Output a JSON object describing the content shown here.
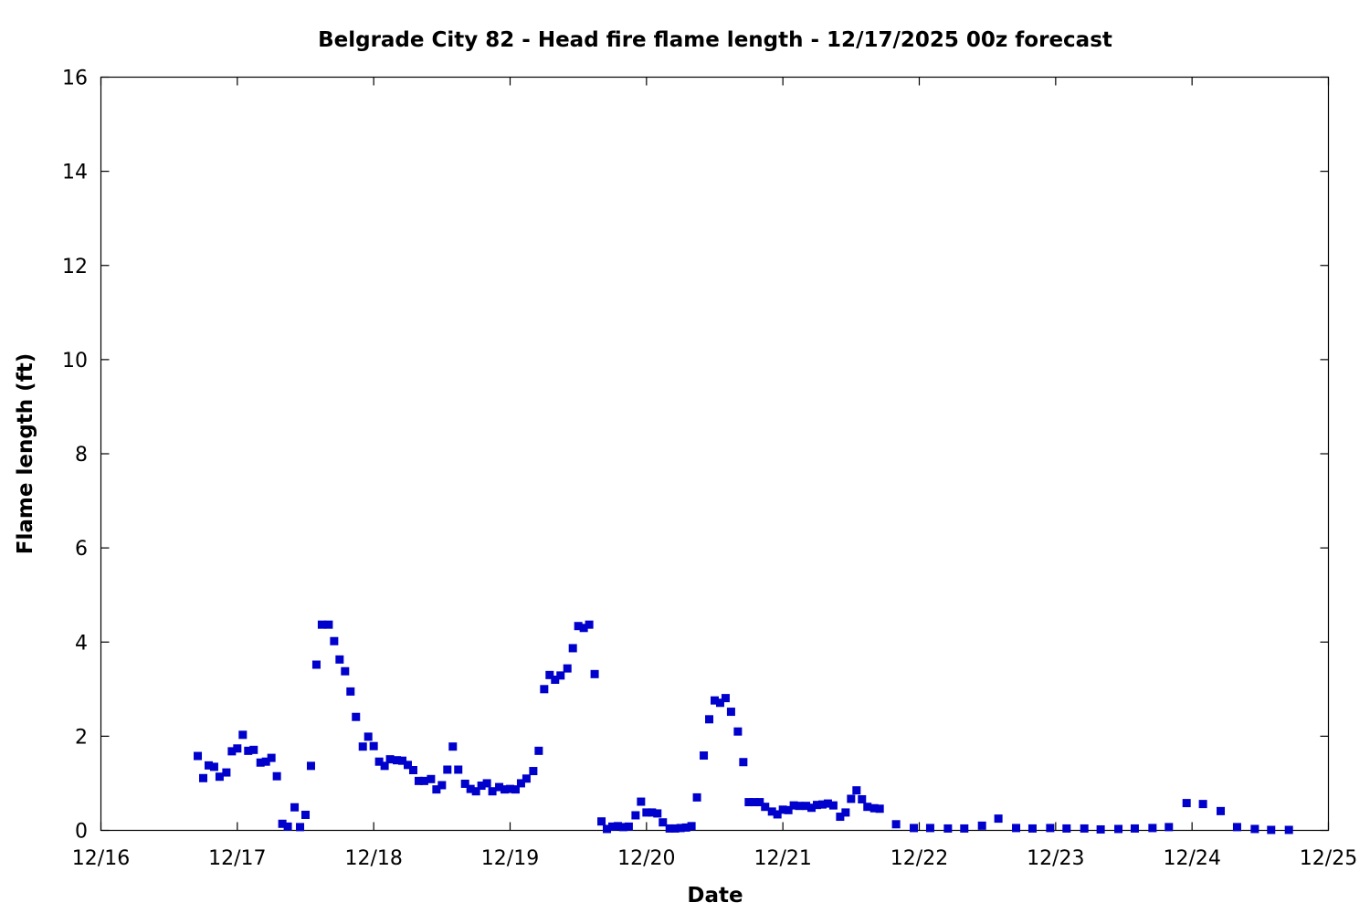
{
  "chart_data": {
    "type": "scatter",
    "title": "Belgrade City 82 - Head fire flame length - 12/17/2025 00z forecast",
    "xlabel": "Date",
    "ylabel": "Flame length (ft)",
    "x_unit": "day of December 2025",
    "xlim": [
      16,
      25
    ],
    "ylim": [
      0,
      16
    ],
    "xticks": [
      {
        "value": 16,
        "label": "12/16"
      },
      {
        "value": 17,
        "label": "12/17"
      },
      {
        "value": 18,
        "label": "12/18"
      },
      {
        "value": 19,
        "label": "12/19"
      },
      {
        "value": 20,
        "label": "12/20"
      },
      {
        "value": 21,
        "label": "12/21"
      },
      {
        "value": 22,
        "label": "12/22"
      },
      {
        "value": 23,
        "label": "12/23"
      },
      {
        "value": 24,
        "label": "12/24"
      },
      {
        "value": 25,
        "label": "12/25"
      }
    ],
    "yticks": [
      0,
      2,
      4,
      6,
      8,
      10,
      12,
      14,
      16
    ],
    "grid": false,
    "legend": "none",
    "marker_color": "#0000cc",
    "points": [
      [
        16.71,
        1.58
      ],
      [
        16.75,
        1.11
      ],
      [
        16.79,
        1.38
      ],
      [
        16.83,
        1.35
      ],
      [
        16.87,
        1.14
      ],
      [
        16.92,
        1.23
      ],
      [
        16.96,
        1.68
      ],
      [
        17.0,
        1.74
      ],
      [
        17.04,
        2.03
      ],
      [
        17.08,
        1.69
      ],
      [
        17.12,
        1.71
      ],
      [
        17.17,
        1.44
      ],
      [
        17.21,
        1.46
      ],
      [
        17.25,
        1.54
      ],
      [
        17.29,
        1.15
      ],
      [
        17.33,
        0.14
      ],
      [
        17.37,
        0.08
      ],
      [
        17.42,
        0.49
      ],
      [
        17.46,
        0.07
      ],
      [
        17.5,
        0.33
      ],
      [
        17.54,
        1.37
      ],
      [
        17.58,
        3.52
      ],
      [
        17.62,
        4.37
      ],
      [
        17.67,
        4.37
      ],
      [
        17.71,
        4.02
      ],
      [
        17.75,
        3.63
      ],
      [
        17.79,
        3.38
      ],
      [
        17.83,
        2.95
      ],
      [
        17.87,
        2.41
      ],
      [
        17.92,
        1.78
      ],
      [
        17.96,
        1.99
      ],
      [
        18.0,
        1.79
      ],
      [
        18.04,
        1.46
      ],
      [
        18.08,
        1.37
      ],
      [
        18.12,
        1.51
      ],
      [
        18.17,
        1.49
      ],
      [
        18.21,
        1.48
      ],
      [
        18.25,
        1.39
      ],
      [
        18.29,
        1.28
      ],
      [
        18.33,
        1.05
      ],
      [
        18.37,
        1.05
      ],
      [
        18.42,
        1.09
      ],
      [
        18.46,
        0.87
      ],
      [
        18.5,
        0.96
      ],
      [
        18.54,
        1.29
      ],
      [
        18.58,
        1.78
      ],
      [
        18.62,
        1.29
      ],
      [
        18.67,
        0.99
      ],
      [
        18.71,
        0.88
      ],
      [
        18.75,
        0.83
      ],
      [
        18.79,
        0.95
      ],
      [
        18.83,
        1.0
      ],
      [
        18.87,
        0.83
      ],
      [
        18.92,
        0.92
      ],
      [
        18.96,
        0.87
      ],
      [
        19.0,
        0.88
      ],
      [
        19.04,
        0.87
      ],
      [
        19.08,
        1.0
      ],
      [
        19.12,
        1.1
      ],
      [
        19.17,
        1.26
      ],
      [
        19.21,
        1.69
      ],
      [
        19.25,
        3.0
      ],
      [
        19.29,
        3.3
      ],
      [
        19.33,
        3.2
      ],
      [
        19.37,
        3.29
      ],
      [
        19.42,
        3.44
      ],
      [
        19.46,
        3.87
      ],
      [
        19.5,
        4.34
      ],
      [
        19.54,
        4.3
      ],
      [
        19.58,
        4.37
      ],
      [
        19.62,
        3.32
      ],
      [
        19.67,
        0.19
      ],
      [
        19.71,
        0.03
      ],
      [
        19.75,
        0.08
      ],
      [
        19.79,
        0.09
      ],
      [
        19.83,
        0.07
      ],
      [
        19.87,
        0.08
      ],
      [
        19.92,
        0.32
      ],
      [
        19.96,
        0.61
      ],
      [
        20.0,
        0.38
      ],
      [
        20.04,
        0.38
      ],
      [
        20.08,
        0.36
      ],
      [
        20.12,
        0.17
      ],
      [
        20.17,
        0.04
      ],
      [
        20.21,
        0.04
      ],
      [
        20.25,
        0.05
      ],
      [
        20.29,
        0.06
      ],
      [
        20.33,
        0.09
      ],
      [
        20.37,
        0.7
      ],
      [
        20.42,
        1.59
      ],
      [
        20.46,
        2.36
      ],
      [
        20.5,
        2.76
      ],
      [
        20.54,
        2.71
      ],
      [
        20.58,
        2.81
      ],
      [
        20.62,
        2.52
      ],
      [
        20.67,
        2.1
      ],
      [
        20.71,
        1.45
      ],
      [
        20.75,
        0.6
      ],
      [
        20.79,
        0.6
      ],
      [
        20.83,
        0.6
      ],
      [
        20.87,
        0.5
      ],
      [
        20.92,
        0.4
      ],
      [
        20.96,
        0.34
      ],
      [
        21.0,
        0.44
      ],
      [
        21.04,
        0.43
      ],
      [
        21.08,
        0.53
      ],
      [
        21.12,
        0.52
      ],
      [
        21.17,
        0.52
      ],
      [
        21.21,
        0.48
      ],
      [
        21.25,
        0.54
      ],
      [
        21.29,
        0.55
      ],
      [
        21.33,
        0.57
      ],
      [
        21.37,
        0.53
      ],
      [
        21.42,
        0.29
      ],
      [
        21.46,
        0.38
      ],
      [
        21.5,
        0.67
      ],
      [
        21.54,
        0.85
      ],
      [
        21.58,
        0.66
      ],
      [
        21.62,
        0.5
      ],
      [
        21.67,
        0.47
      ],
      [
        21.71,
        0.46
      ],
      [
        21.83,
        0.13
      ],
      [
        21.96,
        0.05
      ],
      [
        22.08,
        0.05
      ],
      [
        22.21,
        0.04
      ],
      [
        22.33,
        0.04
      ],
      [
        22.46,
        0.1
      ],
      [
        22.58,
        0.25
      ],
      [
        22.71,
        0.05
      ],
      [
        22.83,
        0.04
      ],
      [
        22.96,
        0.05
      ],
      [
        23.08,
        0.04
      ],
      [
        23.21,
        0.04
      ],
      [
        23.33,
        0.02
      ],
      [
        23.46,
        0.03
      ],
      [
        23.58,
        0.04
      ],
      [
        23.71,
        0.05
      ],
      [
        23.83,
        0.07
      ],
      [
        23.96,
        0.58
      ],
      [
        24.08,
        0.56
      ],
      [
        24.21,
        0.41
      ],
      [
        24.33,
        0.07
      ],
      [
        24.46,
        0.03
      ],
      [
        24.58,
        0.01
      ],
      [
        24.71,
        0.01
      ]
    ]
  }
}
